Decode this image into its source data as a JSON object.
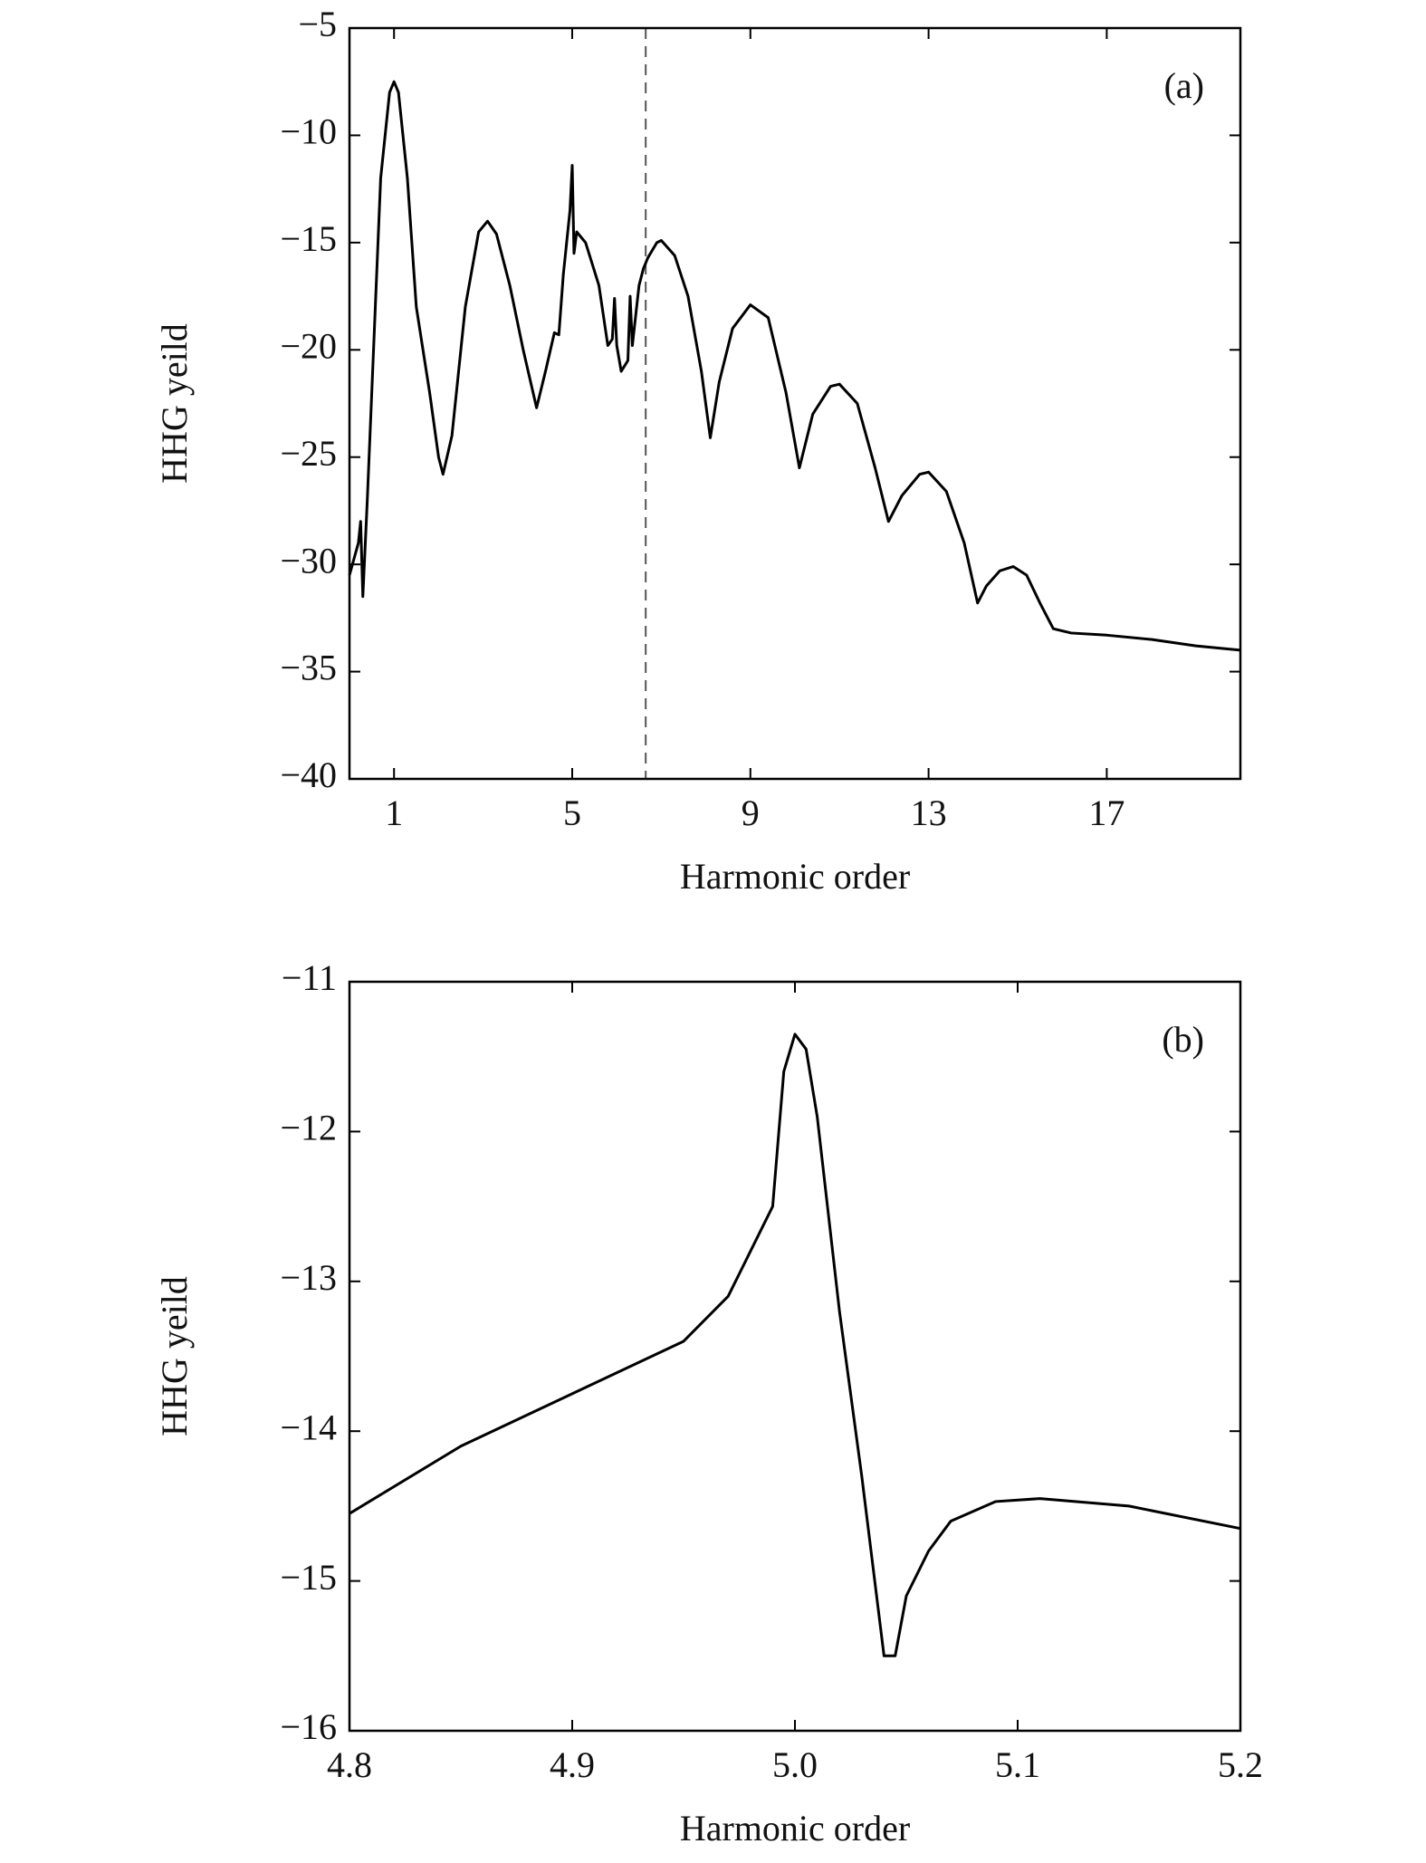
{
  "chart_data": [
    {
      "type": "line",
      "annotation": "(a)",
      "xlabel": "Harmonic order",
      "ylabel": "HHG yeild",
      "xlim": [
        0,
        20
      ],
      "xticks": [
        1,
        5,
        9,
        13,
        17
      ],
      "ylim": [
        -40,
        -5
      ],
      "yticks": [
        {
          "value": -40,
          "label": "−40"
        },
        {
          "value": -35,
          "label": "−35"
        },
        {
          "value": -30,
          "label": "−30"
        },
        {
          "value": -25,
          "label": "−25"
        },
        {
          "value": -20,
          "label": "−20"
        },
        {
          "value": -15,
          "label": "−15"
        },
        {
          "value": -10,
          "label": "−10"
        },
        {
          "value": -5,
          "label": "−5"
        }
      ],
      "vlines": [
        6.65
      ],
      "vline_style": "dashed",
      "x": [
        0,
        0.2,
        0.25,
        0.3,
        0.4,
        0.5,
        0.7,
        0.9,
        1.0,
        1.1,
        1.3,
        1.5,
        1.8,
        2.0,
        2.1,
        2.3,
        2.6,
        2.9,
        3.1,
        3.3,
        3.6,
        3.9,
        4.2,
        4.4,
        4.6,
        4.7,
        4.8,
        4.95,
        5.0,
        5.04,
        5.1,
        5.3,
        5.6,
        5.8,
        5.9,
        5.95,
        6.0,
        6.1,
        6.25,
        6.3,
        6.35,
        6.5,
        6.6,
        6.7,
        6.9,
        7.0,
        7.3,
        7.6,
        7.9,
        8.1,
        8.3,
        8.6,
        9.0,
        9.4,
        9.8,
        10.1,
        10.4,
        10.8,
        11.0,
        11.4,
        11.8,
        12.1,
        12.4,
        12.8,
        13.0,
        13.4,
        13.8,
        14.1,
        14.3,
        14.6,
        14.9,
        15.2,
        15.5,
        15.8,
        16.2,
        17,
        18,
        19,
        20
      ],
      "series": [
        {
          "color": "#000000",
          "values": [
            -30.5,
            -29,
            -28,
            -31.5,
            -27,
            -22,
            -12,
            -8,
            -7.5,
            -8,
            -12,
            -18,
            -22,
            -25,
            -25.8,
            -24,
            -18,
            -14.5,
            -14,
            -14.6,
            -17,
            -20,
            -22.7,
            -21,
            -19.2,
            -19.3,
            -16.5,
            -13.5,
            -11.4,
            -15.5,
            -14.5,
            -15,
            -17,
            -19.8,
            -19.5,
            -17.6,
            -19.8,
            -21,
            -20.5,
            -17.5,
            -19.8,
            -17,
            -16.2,
            -15.7,
            -15,
            -14.9,
            -15.6,
            -17.5,
            -21,
            -24.1,
            -21.5,
            -19,
            -17.9,
            -18.5,
            -22,
            -25.5,
            -23,
            -21.7,
            -21.6,
            -22.5,
            -25.5,
            -28,
            -26.8,
            -25.8,
            -25.7,
            -26.6,
            -29,
            -31.8,
            -31,
            -30.3,
            -30.1,
            -30.5,
            -31.8,
            -33,
            -33.2,
            -33.3,
            -33.5,
            -33.8,
            -34
          ]
        }
      ]
    },
    {
      "type": "line",
      "annotation": "(b)",
      "xlabel": "Harmonic order",
      "ylabel": "HHG yeild",
      "xlim": [
        4.8,
        5.2
      ],
      "xticks": [
        4.8,
        4.9,
        {
          "value": 5,
          "label": "5.0"
        },
        5.1,
        5.2
      ],
      "ylim": [
        -16,
        -11
      ],
      "yticks": [
        {
          "value": -16,
          "label": "−16"
        },
        {
          "value": -15,
          "label": "−15"
        },
        {
          "value": -14,
          "label": "−14"
        },
        {
          "value": -13,
          "label": "−13"
        },
        {
          "value": -12,
          "label": "−12"
        },
        {
          "value": -11,
          "label": "−11"
        }
      ],
      "x": [
        4.8,
        4.85,
        4.9,
        4.95,
        4.97,
        4.98,
        4.99,
        4.995,
        5.0,
        5.005,
        5.01,
        5.02,
        5.03,
        5.04,
        5.045,
        5.05,
        5.06,
        5.07,
        5.09,
        5.11,
        5.15,
        5.2
      ],
      "series": [
        {
          "color": "#000000",
          "values": [
            -14.55,
            -14.1,
            -13.75,
            -13.4,
            -13.1,
            -12.8,
            -12.5,
            -11.6,
            -11.35,
            -11.45,
            -11.9,
            -13.2,
            -14.3,
            -15.5,
            -15.5,
            -15.1,
            -14.8,
            -14.6,
            -14.47,
            -14.45,
            -14.5,
            -14.65
          ]
        }
      ]
    }
  ]
}
